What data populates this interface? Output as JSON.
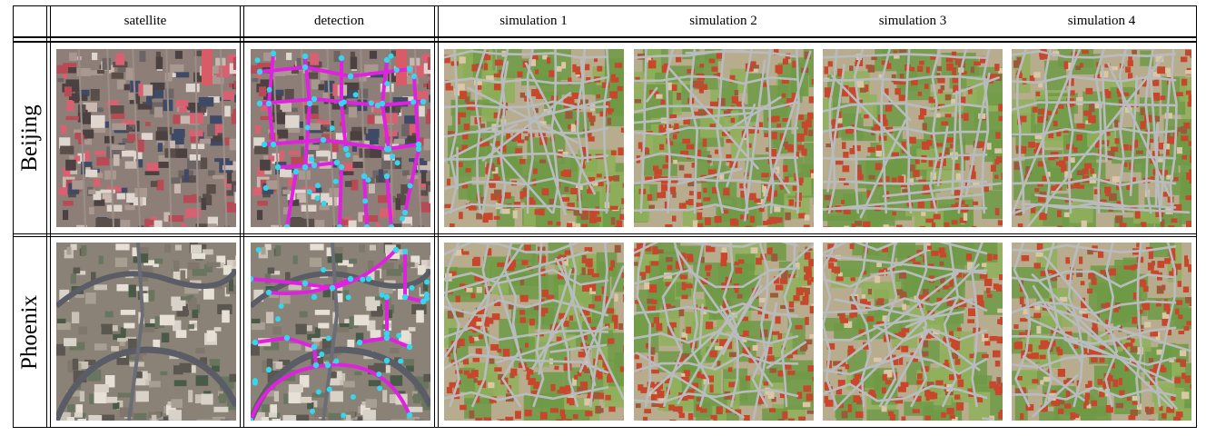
{
  "table": {
    "columns": [
      "satellite",
      "detection",
      "simulation 1",
      "simulation 2",
      "simulation 3",
      "simulation 4"
    ],
    "rows": [
      {
        "label": "Beijing"
      },
      {
        "label": "Phoenix"
      }
    ]
  },
  "colors": {
    "road_detected": "#e021e0",
    "node_detected": "#35d7ee",
    "road_sim": "#b9bcbf",
    "roof_red": "#c8472c",
    "grass": "#6f9a45"
  }
}
